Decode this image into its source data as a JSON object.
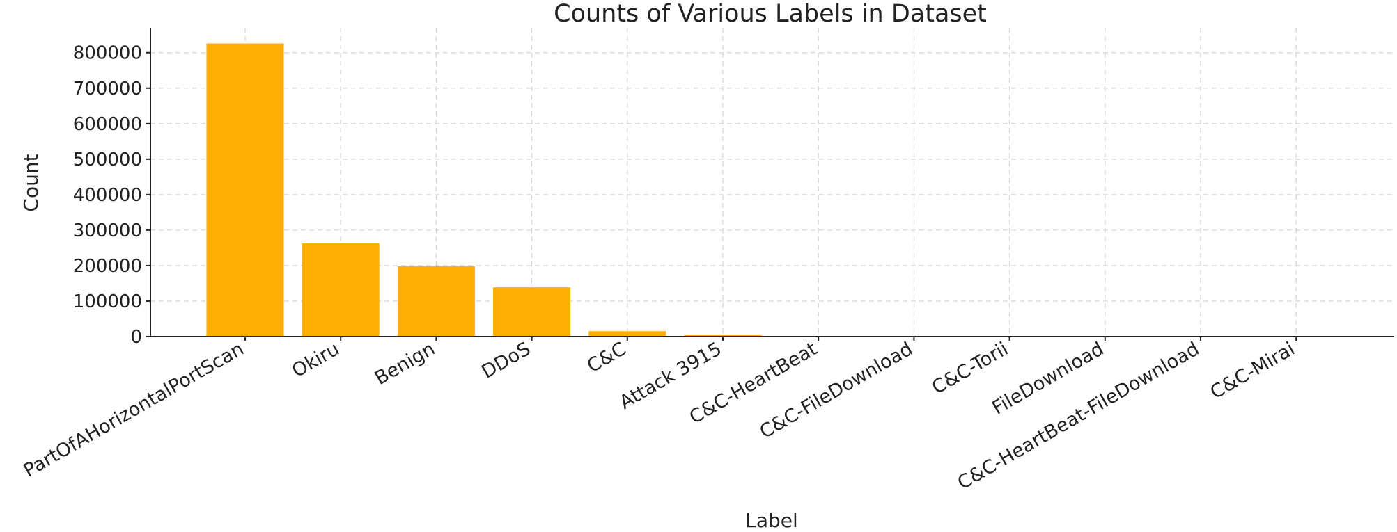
{
  "chart_data": {
    "type": "bar",
    "title": "Counts of Various Labels in Dataset",
    "xlabel": "Label",
    "ylabel": "Count",
    "categories": [
      "PartOfAHorizontalPortScan",
      "Okiru",
      "Benign",
      "DDoS",
      "C&C",
      "Attack 3915",
      "C&C-HeartBeat",
      "C&C-FileDownload",
      "C&C-Torii",
      "FileDownload",
      "C&C-HeartBeat-FileDownload",
      "C&C-Mirai"
    ],
    "values": [
      825900,
      262600,
      197800,
      138800,
      15100,
      3915,
      300,
      50,
      30,
      20,
      10,
      5
    ],
    "ylim": [
      0,
      870000
    ],
    "yticks": [
      0,
      100000,
      200000,
      300000,
      400000,
      500000,
      600000,
      700000,
      800000
    ],
    "grid": true,
    "legend": "none",
    "colors": {
      "bar": "#FFAD00",
      "grid": "#d7d7d7",
      "axis": "#222222",
      "text": "#222222"
    }
  }
}
